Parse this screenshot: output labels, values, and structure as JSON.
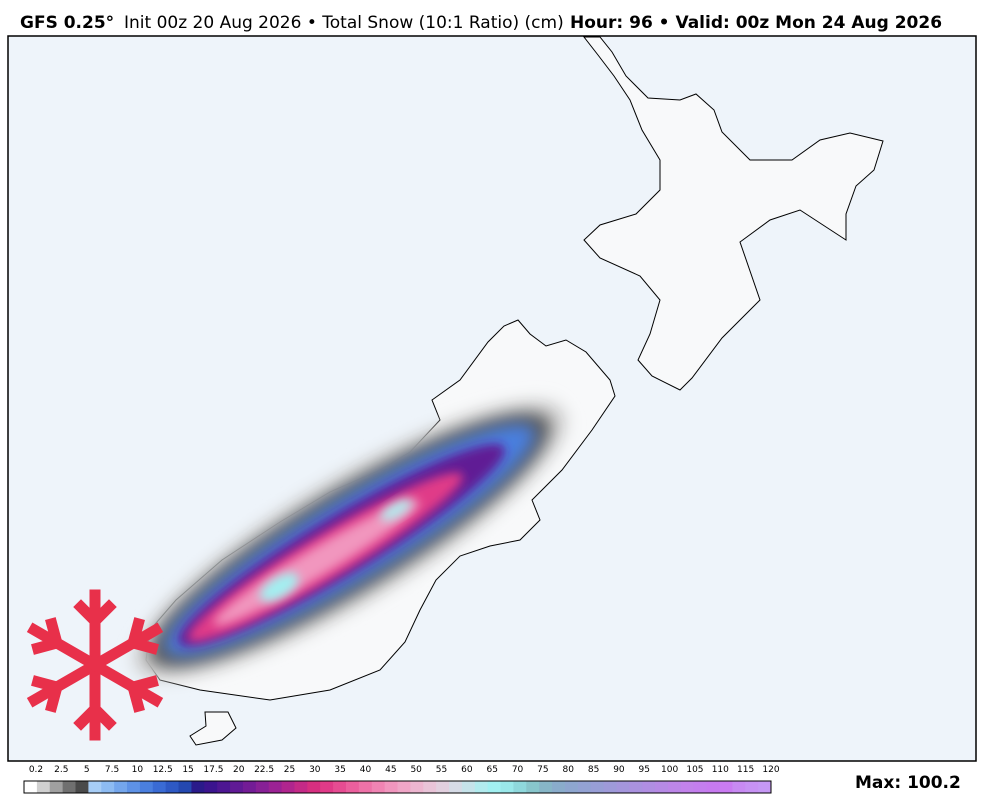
{
  "header": {
    "model": "GFS 0.25°",
    "init": "Init 00z 20 Aug 2026 • Total Snow (10:1 Ratio) (cm)",
    "valid": "Hour: 96 • Valid: 00z Mon 24 Aug 2026"
  },
  "colorbar": {
    "ticks": [
      "0.2",
      "2.5",
      "5",
      "7.5",
      "10",
      "12.5",
      "15",
      "17.5",
      "20",
      "22.5",
      "25",
      "30",
      "35",
      "40",
      "45",
      "50",
      "55",
      "60",
      "65",
      "70",
      "75",
      "80",
      "85",
      "90",
      "95",
      "100",
      "105",
      "110",
      "115",
      "120"
    ],
    "colors": [
      "#ffffff",
      "#d0d0d0",
      "#a0a0a0",
      "#707070",
      "#4a4a4a",
      "#a7cdf6",
      "#8dbbf2",
      "#74a6ec",
      "#5e92e6",
      "#4a7fdf",
      "#3a6bd4",
      "#2e59c4",
      "#2448b0",
      "#2a1a8a",
      "#3b148e",
      "#4d1692",
      "#601a95",
      "#731c96",
      "#872096",
      "#9b2294",
      "#b0258e",
      "#c42a87",
      "#d62f80",
      "#e03a88",
      "#e64c92",
      "#eb5f9d",
      "#ee72a8",
      "#f084b3",
      "#f196be",
      "#f0a6c7",
      "#edb6d0",
      "#e9c4d8",
      "#e2d0df",
      "#d6dbe6",
      "#c6e3ea",
      "#b2ebee",
      "#a2f0f1",
      "#9ae8ea",
      "#8fd8dc",
      "#88c6cc",
      "#87b6c7",
      "#8aaccb",
      "#8ea6cf",
      "#93a2d3",
      "#989ed6",
      "#9e9ad9",
      "#a496dc",
      "#aa92df",
      "#b08ee2",
      "#b68ae5",
      "#bc86e8",
      "#c282eb",
      "#c47eee",
      "#c77af0",
      "#ca7bf2",
      "#c88af3",
      "#c792f4",
      "#c698f5"
    ],
    "max": "Max: 100.2"
  }
}
